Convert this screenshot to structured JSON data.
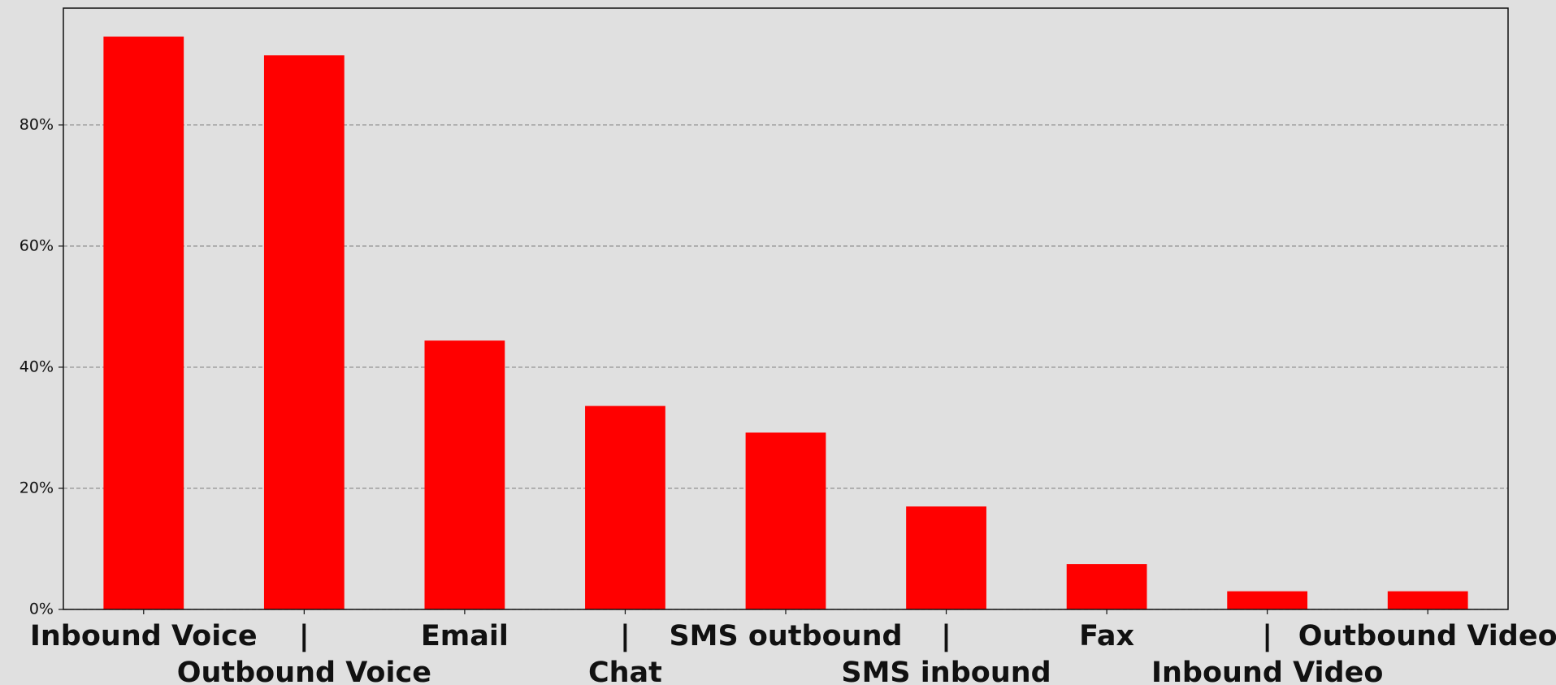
{
  "chart_data": {
    "type": "bar",
    "categories": [
      [
        "Inbound Voice"
      ],
      [
        "|",
        "Outbound Voice"
      ],
      [
        "Email"
      ],
      [
        "|",
        "Chat"
      ],
      [
        "SMS outbound"
      ],
      [
        "|",
        "SMS inbound"
      ],
      [
        "Fax"
      ],
      [
        "|",
        "Inbound Video"
      ],
      [
        "Outbound Video"
      ]
    ],
    "values": [
      94.6,
      91.5,
      44.4,
      33.6,
      29.2,
      17.0,
      7.5,
      3.0,
      3.0
    ],
    "color": "#ff0000",
    "ylim": [
      0,
      99.3
    ],
    "yticks": [
      {
        "value": 0,
        "label": "0%"
      },
      {
        "value": 20,
        "label": "20%"
      },
      {
        "value": 40,
        "label": "40%"
      },
      {
        "value": 60,
        "label": "60%"
      },
      {
        "value": 80,
        "label": "80%"
      }
    ],
    "grid": true
  }
}
